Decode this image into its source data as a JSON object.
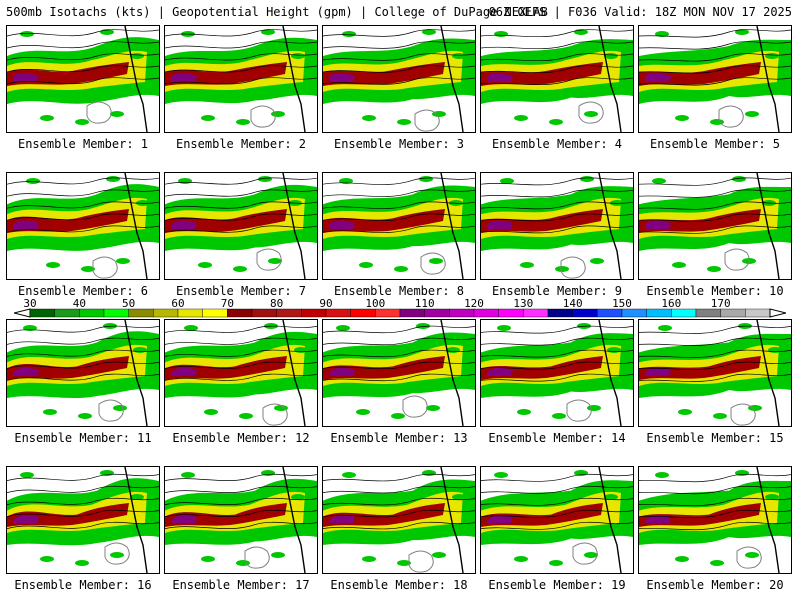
{
  "header": {
    "title_left": "500mb Isotachs (kts) | Geopotential Height (gpm) | College of DuPage NEXLAB",
    "title_right": "06Z GEFS | F036 Valid: 18Z MON NOV 17 2025"
  },
  "ensemble_members": [
    {
      "label": "Ensemble Member: 1"
    },
    {
      "label": "Ensemble Member: 2"
    },
    {
      "label": "Ensemble Member: 3"
    },
    {
      "label": "Ensemble Member: 4"
    },
    {
      "label": "Ensemble Member: 5"
    },
    {
      "label": "Ensemble Member: 6"
    },
    {
      "label": "Ensemble Member: 7"
    },
    {
      "label": "Ensemble Member: 8"
    },
    {
      "label": "Ensemble Member: 9"
    },
    {
      "label": "Ensemble Member: 10"
    },
    {
      "label": "Ensemble Member: 11"
    },
    {
      "label": "Ensemble Member: 12"
    },
    {
      "label": "Ensemble Member: 13"
    },
    {
      "label": "Ensemble Member: 14"
    },
    {
      "label": "Ensemble Member: 15"
    },
    {
      "label": "Ensemble Member: 16"
    },
    {
      "label": "Ensemble Member: 17"
    },
    {
      "label": "Ensemble Member: 18"
    },
    {
      "label": "Ensemble Member: 19"
    },
    {
      "label": "Ensemble Member: 20"
    }
  ],
  "colorbar": {
    "labels": [
      "30",
      "40",
      "50",
      "60",
      "70",
      "80",
      "90",
      "100",
      "110",
      "120",
      "130",
      "140",
      "150",
      "160",
      "170"
    ],
    "colors": [
      "#006400",
      "#1a9a1a",
      "#00c800",
      "#00ff00",
      "#8b8b00",
      "#b8b800",
      "#e6e600",
      "#ffff00",
      "#8b0000",
      "#a01010",
      "#b01818",
      "#c00000",
      "#d81010",
      "#ff0000",
      "#ff3030",
      "#800080",
      "#a000a0",
      "#c000c0",
      "#e000e0",
      "#ff00ff",
      "#ff30ff",
      "#00008b",
      "#0000cd",
      "#1e50ff",
      "#1e90ff",
      "#00bfff",
      "#00ffff",
      "#808080",
      "#a9a9a9",
      "#c8c8c8"
    ]
  },
  "legend_colors": {
    "land": "#ffffff",
    "jet_weak": "#00c800",
    "jet_moderate": "#e6e600",
    "jet_strong": "#a00000",
    "jet_core": "#800080",
    "contour": "#000000",
    "low_contour": "#808080"
  }
}
